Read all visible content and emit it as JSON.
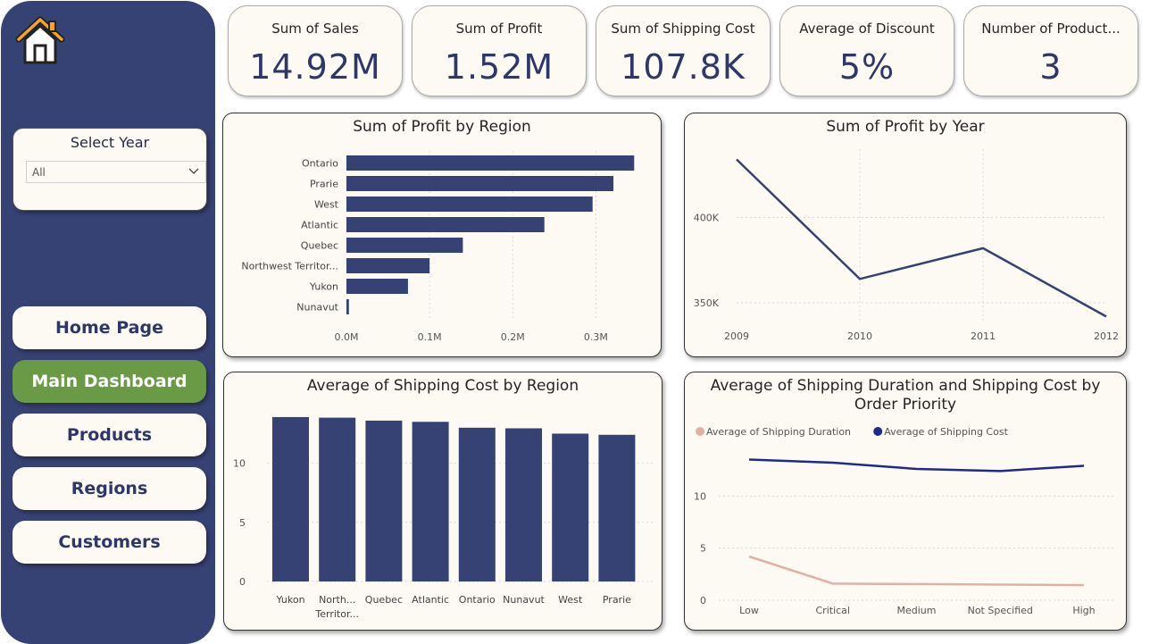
{
  "sidebar": {
    "home_icon": "home-icon",
    "year_filter": {
      "title": "Select Year",
      "value": "All"
    },
    "nav": [
      {
        "label": "Home Page",
        "active": false
      },
      {
        "label": "Main Dashboard",
        "active": true
      },
      {
        "label": "Products",
        "active": false
      },
      {
        "label": "Regions",
        "active": false
      },
      {
        "label": "Customers",
        "active": false
      }
    ]
  },
  "kpis": [
    {
      "label": "Sum of Sales",
      "value": "14.92M"
    },
    {
      "label": "Sum of Profit",
      "value": "1.52M"
    },
    {
      "label": "Sum of Shipping Cost",
      "value": "107.8K"
    },
    {
      "label": "Average of Discount",
      "value": "5%"
    },
    {
      "label": "Number of Product...",
      "value": "3"
    }
  ],
  "colors": {
    "sidebar": "#374274",
    "accent_navy": "#374274",
    "active_green": "#6a9a46",
    "card_bg": "#fdfaf3",
    "series_blue": "#1f2a8f",
    "series_pink": "#e0b0a5"
  },
  "chart_data": [
    {
      "type": "bar",
      "orientation": "horizontal",
      "title": "Sum of Profit by Region",
      "categories": [
        "Ontario",
        "Prarie",
        "West",
        "Atlantic",
        "Quebec",
        "Northwest Territor...",
        "Yukon",
        "Nunavut"
      ],
      "values": [
        0.346,
        0.321,
        0.296,
        0.238,
        0.14,
        0.1,
        0.074,
        0.003
      ],
      "xlim": [
        0,
        0.35
      ],
      "xticks": [
        "0.0M",
        "0.1M",
        "0.2M",
        "0.3M"
      ],
      "xtick_values": [
        0,
        0.1,
        0.2,
        0.3
      ],
      "grid": true
    },
    {
      "type": "line",
      "title": "Sum of Profit by Year",
      "x": [
        "2009",
        "2010",
        "2011",
        "2012"
      ],
      "values": [
        434000,
        364000,
        382000,
        342000
      ],
      "ylim": [
        338000,
        440000
      ],
      "yticks": [
        "350K",
        "400K"
      ],
      "ytick_values": [
        350000,
        400000
      ],
      "grid": true
    },
    {
      "type": "bar",
      "orientation": "vertical",
      "title": "Average of Shipping Cost by Region",
      "categories": [
        "Yukon",
        "North... Territor...",
        "Quebec",
        "Atlantic",
        "Ontario",
        "Nunavut",
        "West",
        "Prarie"
      ],
      "values": [
        13.9,
        13.85,
        13.6,
        13.5,
        13.0,
        12.95,
        12.5,
        12.4
      ],
      "ylim": [
        0,
        14.5
      ],
      "yticks": [
        "0",
        "5",
        "10"
      ],
      "ytick_values": [
        0,
        5,
        10
      ],
      "grid": true
    },
    {
      "type": "line",
      "title": "Average of Shipping Duration and Shipping Cost by Order Priority",
      "x": [
        "Low",
        "Critical",
        "Medium",
        "Not Specified",
        "High"
      ],
      "series": [
        {
          "name": "Average of Shipping Duration",
          "color": "#e0b0a5",
          "values": [
            4.2,
            1.6,
            1.55,
            1.5,
            1.45
          ]
        },
        {
          "name": "Average of Shipping Cost",
          "color": "#1f2a8f",
          "values": [
            13.5,
            13.2,
            12.6,
            12.4,
            12.9
          ]
        }
      ],
      "ylim": [
        0,
        15
      ],
      "yticks": [
        "0",
        "5",
        "10"
      ],
      "ytick_values": [
        0,
        5,
        10
      ],
      "legend": "top-left",
      "grid": true
    }
  ]
}
